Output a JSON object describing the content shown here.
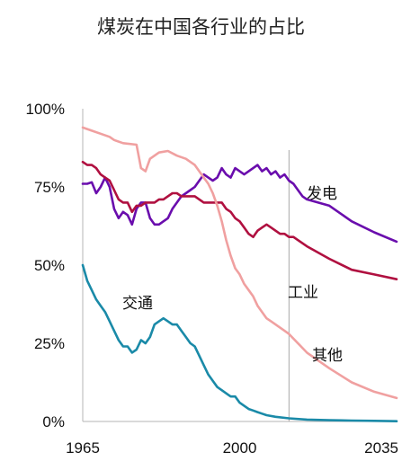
{
  "chart_data": {
    "type": "line",
    "title": "煤炭在中国各行业的占比",
    "xlabel": "",
    "ylabel": "",
    "xlim": [
      1965,
      2035
    ],
    "ylim": [
      0,
      100
    ],
    "x_ticks": [
      "1965",
      "2000",
      "2035"
    ],
    "y_ticks": [
      "0%",
      "25%",
      "50%",
      "75%",
      "100%"
    ],
    "projection_start_year": 2011,
    "grid": false,
    "series": [
      {
        "name": "发电",
        "color": "#6a0dad",
        "points": [
          [
            1965,
            76
          ],
          [
            1966,
            76
          ],
          [
            1967,
            76.5
          ],
          [
            1968,
            73
          ],
          [
            1969,
            75
          ],
          [
            1970,
            78
          ],
          [
            1971,
            75
          ],
          [
            1972,
            68
          ],
          [
            1973,
            65
          ],
          [
            1974,
            67
          ],
          [
            1975,
            66
          ],
          [
            1976,
            63
          ],
          [
            1977,
            68
          ],
          [
            1978,
            70
          ],
          [
            1979,
            70
          ],
          [
            1980,
            65
          ],
          [
            1981,
            63
          ],
          [
            1982,
            63
          ],
          [
            1983,
            64
          ],
          [
            1984,
            65
          ],
          [
            1985,
            68
          ],
          [
            1986,
            70
          ],
          [
            1987,
            72
          ],
          [
            1988,
            73
          ],
          [
            1989,
            74
          ],
          [
            1990,
            75
          ],
          [
            1991,
            77
          ],
          [
            1992,
            79
          ],
          [
            1993,
            78
          ],
          [
            1994,
            77
          ],
          [
            1995,
            78
          ],
          [
            1996,
            81
          ],
          [
            1997,
            79
          ],
          [
            1998,
            78
          ],
          [
            1999,
            81
          ],
          [
            2000,
            80
          ],
          [
            2001,
            79
          ],
          [
            2002,
            80
          ],
          [
            2003,
            81
          ],
          [
            2004,
            82
          ],
          [
            2005,
            80
          ],
          [
            2006,
            81
          ],
          [
            2007,
            79
          ],
          [
            2008,
            80
          ],
          [
            2009,
            78
          ],
          [
            2010,
            79
          ],
          [
            2011,
            77
          ],
          [
            2012,
            76
          ],
          [
            2013,
            74
          ],
          [
            2014,
            72
          ],
          [
            2015,
            71
          ],
          [
            2020,
            69
          ],
          [
            2025,
            64
          ],
          [
            2030,
            60.5
          ],
          [
            2035,
            57.5
          ]
        ]
      },
      {
        "name": "工业",
        "color": "#b01040",
        "points": [
          [
            1965,
            83
          ],
          [
            1966,
            82
          ],
          [
            1967,
            82
          ],
          [
            1968,
            81
          ],
          [
            1969,
            79
          ],
          [
            1970,
            78
          ],
          [
            1971,
            77
          ],
          [
            1972,
            74
          ],
          [
            1973,
            71
          ],
          [
            1974,
            70
          ],
          [
            1975,
            70
          ],
          [
            1976,
            67
          ],
          [
            1977,
            69
          ],
          [
            1978,
            69
          ],
          [
            1979,
            70
          ],
          [
            1980,
            70
          ],
          [
            1981,
            70
          ],
          [
            1982,
            71
          ],
          [
            1983,
            71
          ],
          [
            1984,
            72
          ],
          [
            1985,
            73
          ],
          [
            1986,
            73
          ],
          [
            1987,
            72
          ],
          [
            1988,
            72
          ],
          [
            1989,
            72
          ],
          [
            1990,
            72
          ],
          [
            1991,
            71
          ],
          [
            1992,
            70
          ],
          [
            1993,
            70
          ],
          [
            1994,
            70
          ],
          [
            1995,
            70
          ],
          [
            1996,
            70
          ],
          [
            1997,
            68
          ],
          [
            1998,
            67
          ],
          [
            1999,
            65
          ],
          [
            2000,
            64
          ],
          [
            2001,
            62
          ],
          [
            2002,
            60
          ],
          [
            2003,
            59
          ],
          [
            2004,
            61
          ],
          [
            2005,
            62
          ],
          [
            2006,
            63
          ],
          [
            2007,
            62
          ],
          [
            2008,
            61
          ],
          [
            2009,
            60
          ],
          [
            2010,
            60
          ],
          [
            2011,
            59
          ],
          [
            2012,
            59
          ],
          [
            2013,
            58
          ],
          [
            2015,
            56
          ],
          [
            2020,
            52
          ],
          [
            2025,
            48.5
          ],
          [
            2030,
            47
          ],
          [
            2035,
            45.5
          ]
        ]
      },
      {
        "name": "其他",
        "color": "#f0a0a0",
        "points": [
          [
            1965,
            94
          ],
          [
            1967,
            93
          ],
          [
            1969,
            92
          ],
          [
            1971,
            91
          ],
          [
            1972,
            90
          ],
          [
            1974,
            89
          ],
          [
            1977,
            88.5
          ],
          [
            1978,
            81
          ],
          [
            1979,
            80
          ],
          [
            1980,
            84
          ],
          [
            1981,
            85
          ],
          [
            1982,
            86
          ],
          [
            1984,
            86.5
          ],
          [
            1986,
            85
          ],
          [
            1988,
            84
          ],
          [
            1989,
            83
          ],
          [
            1990,
            82
          ],
          [
            1991,
            80
          ],
          [
            1992,
            78
          ],
          [
            1993,
            76
          ],
          [
            1994,
            73
          ],
          [
            1995,
            69
          ],
          [
            1996,
            64
          ],
          [
            1997,
            58
          ],
          [
            1998,
            53
          ],
          [
            1999,
            49
          ],
          [
            2000,
            47
          ],
          [
            2001,
            44
          ],
          [
            2002,
            42
          ],
          [
            2003,
            40
          ],
          [
            2004,
            37
          ],
          [
            2005,
            35
          ],
          [
            2006,
            33
          ],
          [
            2007,
            32
          ],
          [
            2008,
            31
          ],
          [
            2009,
            30
          ],
          [
            2010,
            29
          ],
          [
            2011,
            28
          ],
          [
            2015,
            22
          ],
          [
            2020,
            17
          ],
          [
            2025,
            12.5
          ],
          [
            2030,
            9.5
          ],
          [
            2035,
            7.5
          ]
        ]
      },
      {
        "name": "交通",
        "color": "#1a8aa8",
        "points": [
          [
            1965,
            50
          ],
          [
            1966,
            45
          ],
          [
            1967,
            42
          ],
          [
            1968,
            39
          ],
          [
            1969,
            37
          ],
          [
            1970,
            35
          ],
          [
            1971,
            32
          ],
          [
            1972,
            29
          ],
          [
            1973,
            26
          ],
          [
            1974,
            24
          ],
          [
            1975,
            24
          ],
          [
            1976,
            22
          ],
          [
            1977,
            23
          ],
          [
            1978,
            26
          ],
          [
            1979,
            25
          ],
          [
            1980,
            27
          ],
          [
            1981,
            31
          ],
          [
            1982,
            32
          ],
          [
            1983,
            33
          ],
          [
            1984,
            32
          ],
          [
            1985,
            31
          ],
          [
            1986,
            31
          ],
          [
            1987,
            29
          ],
          [
            1988,
            27
          ],
          [
            1989,
            25
          ],
          [
            1990,
            24
          ],
          [
            1991,
            21
          ],
          [
            1992,
            18
          ],
          [
            1993,
            15
          ],
          [
            1994,
            13
          ],
          [
            1995,
            11
          ],
          [
            1996,
            10
          ],
          [
            1997,
            9
          ],
          [
            1998,
            8
          ],
          [
            1999,
            8
          ],
          [
            2000,
            6
          ],
          [
            2001,
            5
          ],
          [
            2002,
            4
          ],
          [
            2003,
            3.5
          ],
          [
            2004,
            3
          ],
          [
            2005,
            2.5
          ],
          [
            2006,
            2
          ],
          [
            2008,
            1.5
          ],
          [
            2011,
            1
          ],
          [
            2015,
            0.6
          ],
          [
            2020,
            0.4
          ],
          [
            2025,
            0.3
          ],
          [
            2030,
            0.2
          ],
          [
            2035,
            0.1
          ]
        ]
      }
    ]
  }
}
